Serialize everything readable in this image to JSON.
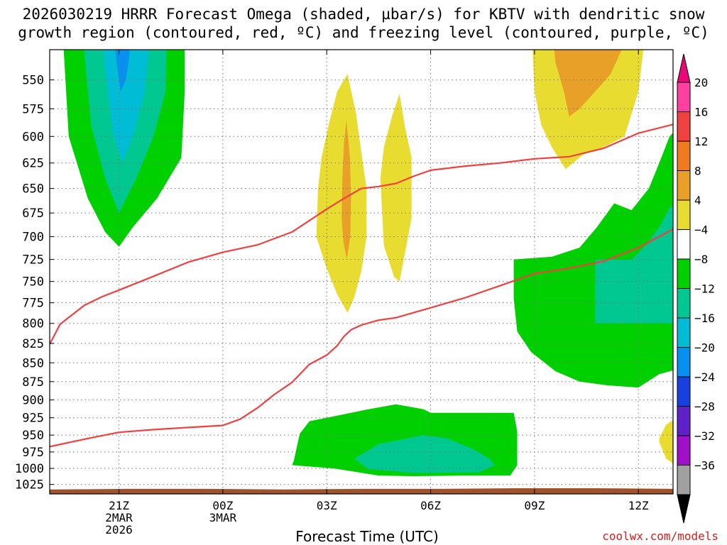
{
  "title_line1": "2026030219 HRRR Forecast Omega (shaded, µbar/s) for KBTV with dendritic snow",
  "title_line2": "growth region (contoured, red, ºC) and freezing level (contoured, purple, ºC)",
  "xlabel": "Forecast Time (UTC)",
  "credit": "coolwx.com/models",
  "chart_data": {
    "type": "time-height cross section (filled contour)",
    "x_axis": {
      "label": "Forecast Time (UTC)",
      "unit": "hours from 2026-03-02 19Z",
      "range": [
        0,
        18
      ],
      "ticks": [
        {
          "hour": 2,
          "lines": [
            "21Z",
            "2MAR",
            "2026"
          ]
        },
        {
          "hour": 5,
          "lines": [
            "00Z",
            "3MAR"
          ]
        },
        {
          "hour": 8,
          "lines": [
            "03Z"
          ]
        },
        {
          "hour": 11,
          "lines": [
            "06Z"
          ]
        },
        {
          "hour": 14,
          "lines": [
            "09Z"
          ]
        },
        {
          "hour": 17,
          "lines": [
            "12Z"
          ]
        }
      ]
    },
    "y_axis": {
      "unit": "hPa",
      "scale": "log-pressure",
      "range": [
        1040,
        525
      ],
      "ticks": [
        550,
        575,
        600,
        625,
        650,
        675,
        700,
        725,
        750,
        775,
        800,
        825,
        850,
        875,
        900,
        925,
        950,
        975,
        1000,
        1025
      ]
    },
    "colorbar": {
      "labels": [
        "20",
        "16",
        "12",
        "8",
        "4",
        "−4",
        "−8",
        "−12",
        "−16",
        "−20",
        "−24",
        "−28",
        "−32",
        "−36"
      ],
      "levels": [
        20,
        16,
        12,
        8,
        4,
        -4,
        -8,
        -12,
        -16,
        -20,
        -24,
        -28,
        -32,
        -36
      ],
      "colors_top_to_bottom": [
        "#ff40a0",
        "#f04040",
        "#f07a20",
        "#e8a028",
        "#e8dc30",
        "#ffffff",
        "#00d000",
        "#00c890",
        "#00bcd4",
        "#0890f0",
        "#1840e0",
        "#6020c8",
        "#a010c8",
        "#a0a0a0"
      ],
      "end_top": "#e8087a",
      "end_bottom": "#000000"
    },
    "omega_regions": [
      {
        "name": "ascent-1 (green)",
        "value": -4,
        "color": "#00d000"
      },
      {
        "name": "ascent-1 core",
        "value": -8,
        "color": "#00c890"
      },
      {
        "name": "ascent-1 core",
        "value": -12,
        "color": "#00bcd4"
      },
      {
        "name": "ascent-1 max",
        "value": -16,
        "color": "#0890f0"
      },
      {
        "name": "subsidence 03Z",
        "value": 4,
        "color": "#e8dc30"
      },
      {
        "name": "subsidence 03Z max",
        "value": 8,
        "color": "#e8a028"
      },
      {
        "name": "subsidence 04-05Z",
        "value": 4,
        "color": "#e8dc30"
      },
      {
        "name": "subsidence 10Z",
        "value": 4,
        "color": "#e8dc30"
      },
      {
        "name": "subsidence 10Z max",
        "value": 8,
        "color": "#e8a028"
      },
      {
        "name": "ascent low-level 02-07Z",
        "value": -4,
        "color": "#00d000"
      },
      {
        "name": "ascent low-level core",
        "value": -8,
        "color": "#00c890"
      },
      {
        "name": "ascent 09-13Z",
        "value": -4,
        "color": "#00d000"
      },
      {
        "name": "ascent 09-13Z core",
        "value": -8,
        "color": "#00c890"
      },
      {
        "name": "subsidence near-sfc 13Z",
        "value": 4,
        "color": "#e8dc30"
      }
    ],
    "dgz_contours": [
      {
        "name": "dgz-upper (-12C)",
        "color": "#f04040",
        "points": [
          [
            0,
            826
          ],
          [
            0.3,
            801
          ],
          [
            1,
            778
          ],
          [
            1.5,
            768
          ],
          [
            2,
            760
          ],
          [
            3,
            744
          ],
          [
            4,
            728
          ],
          [
            5,
            717
          ],
          [
            6,
            709
          ],
          [
            7,
            695
          ],
          [
            8,
            671
          ],
          [
            8.5,
            660
          ],
          [
            9,
            650
          ],
          [
            9.5,
            648
          ],
          [
            10,
            645
          ],
          [
            10.5,
            638
          ],
          [
            11,
            632
          ],
          [
            12,
            628
          ],
          [
            13,
            625
          ],
          [
            14,
            621
          ],
          [
            15,
            619
          ],
          [
            16,
            611
          ],
          [
            17,
            597
          ],
          [
            18,
            589
          ]
        ]
      },
      {
        "name": "dgz-lower (-18C)",
        "color": "#f04040",
        "points": [
          [
            0,
            967
          ],
          [
            1,
            956
          ],
          [
            2,
            946
          ],
          [
            3,
            942
          ],
          [
            4,
            939
          ],
          [
            5,
            936
          ],
          [
            5.5,
            927
          ],
          [
            6,
            911
          ],
          [
            6.5,
            892
          ],
          [
            7,
            876
          ],
          [
            7.5,
            852
          ],
          [
            8,
            840
          ],
          [
            8.3,
            828
          ],
          [
            8.5,
            816
          ],
          [
            8.7,
            808
          ],
          [
            9,
            802
          ],
          [
            9.5,
            796
          ],
          [
            10,
            793
          ],
          [
            11,
            781
          ],
          [
            12,
            769
          ],
          [
            13,
            755
          ],
          [
            14,
            741
          ],
          [
            15,
            735
          ],
          [
            16,
            727
          ],
          [
            17,
            712
          ],
          [
            18,
            692
          ]
        ]
      }
    ],
    "terrain": {
      "color": "#a0522d",
      "surface_hpa": [
        1033,
        1032,
        1032,
        1033,
        1032,
        1032,
        1031,
        1031,
        1032
      ]
    }
  }
}
